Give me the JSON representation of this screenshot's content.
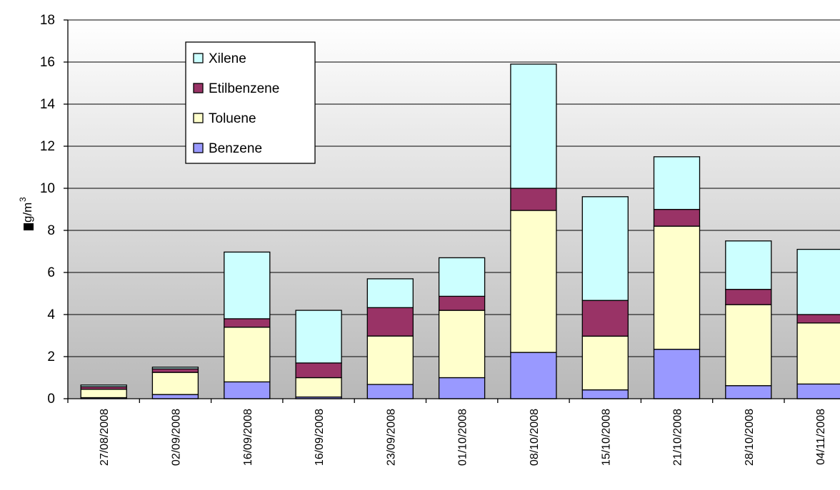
{
  "chart_data": {
    "type": "bar",
    "stacked": true,
    "categories": [
      "27/08/2008",
      "02/09/2008",
      "16/09/2008",
      "16/09/2008",
      "23/09/2008",
      "01/10/2008",
      "08/10/2008",
      "15/10/2008",
      "21/10/2008",
      "28/10/2008",
      "04/11/2008"
    ],
    "series": [
      {
        "name": "Benzene",
        "color": "#9999ff",
        "values": [
          0.05,
          0.2,
          0.8,
          0.08,
          0.68,
          1.0,
          2.2,
          0.42,
          2.35,
          0.62,
          0.7
        ]
      },
      {
        "name": "Toluene",
        "color": "#ffffcc",
        "values": [
          0.4,
          1.05,
          2.6,
          0.92,
          2.3,
          3.2,
          6.75,
          2.55,
          5.85,
          3.85,
          2.9
        ]
      },
      {
        "name": "Etilbenzene",
        "color": "#993366",
        "values": [
          0.12,
          0.17,
          0.4,
          0.7,
          1.35,
          0.67,
          1.05,
          1.7,
          0.8,
          0.73,
          0.4
        ]
      },
      {
        "name": "Xilene",
        "color": "#ccffff",
        "values": [
          0.08,
          0.08,
          3.17,
          2.5,
          1.37,
          1.83,
          5.9,
          4.93,
          2.5,
          2.3,
          3.1
        ]
      }
    ],
    "ylabel_main": "g/m",
    "ylabel_sup": "3",
    "ylim": [
      0,
      18
    ],
    "ytick_step": 2,
    "grid": true,
    "legend_position": "top-left",
    "legend_order": [
      "Xilene",
      "Etilbenzene",
      "Toluene",
      "Benzene"
    ]
  }
}
